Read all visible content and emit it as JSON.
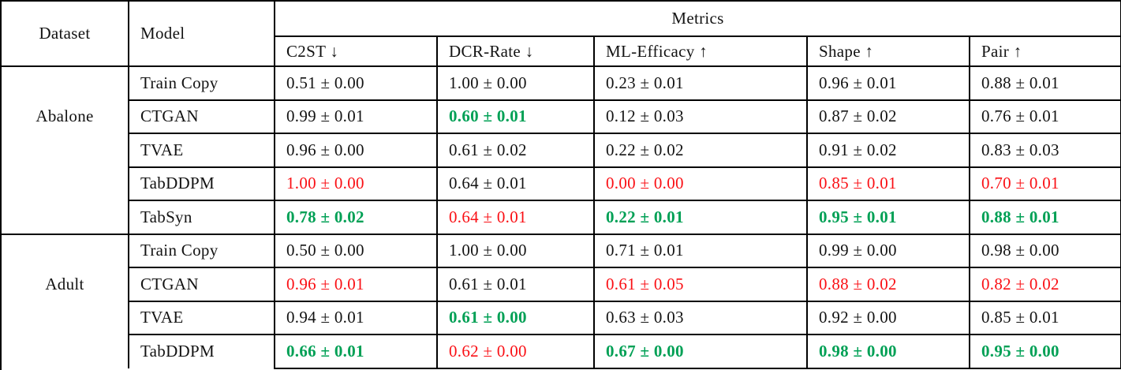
{
  "table": {
    "header": {
      "dataset": "Dataset",
      "model": "Model",
      "metrics_group": "Metrics",
      "columns": [
        "C2ST ↓",
        "DCR-Rate ↓",
        "ML-Efficacy ↑",
        "Shape ↑",
        "Pair ↑"
      ]
    },
    "sections": [
      {
        "dataset": "Abalone",
        "rows": [
          {
            "model": "Train Copy",
            "values": [
              "0.51 ± 0.00",
              "1.00 ± 0.00",
              "0.23 ± 0.01",
              "0.96 ± 0.01",
              "0.88 ± 0.01"
            ],
            "styles": [
              "plain",
              "plain",
              "plain",
              "plain",
              "plain"
            ]
          },
          {
            "model": "CTGAN",
            "values": [
              "0.99 ± 0.01",
              "0.60 ± 0.01",
              "0.12 ± 0.03",
              "0.87 ± 0.02",
              "0.76 ± 0.01"
            ],
            "styles": [
              "plain",
              "green-bold",
              "plain",
              "plain",
              "plain"
            ]
          },
          {
            "model": "TVAE",
            "values": [
              "0.96 ± 0.00",
              "0.61 ± 0.02",
              "0.22 ± 0.02",
              "0.91 ± 0.02",
              "0.83 ± 0.03"
            ],
            "styles": [
              "plain",
              "plain",
              "plain",
              "plain",
              "plain"
            ]
          },
          {
            "model": "TabDDPM",
            "values": [
              "1.00 ± 0.00",
              "0.64 ± 0.01",
              "0.00 ± 0.00",
              "0.85 ± 0.01",
              "0.70 ± 0.01"
            ],
            "styles": [
              "red",
              "plain",
              "red",
              "red",
              "red"
            ]
          },
          {
            "model": "TabSyn",
            "values": [
              "0.78 ± 0.02",
              "0.64 ± 0.01",
              "0.22 ± 0.01",
              "0.95 ± 0.01",
              "0.88 ± 0.01"
            ],
            "styles": [
              "green-bold",
              "red",
              "green-bold",
              "green-bold",
              "green-bold"
            ]
          }
        ]
      },
      {
        "dataset": "Adult",
        "rows": [
          {
            "model": "Train Copy",
            "values": [
              "0.50 ± 0.00",
              "1.00 ± 0.00",
              "0.71 ± 0.01",
              "0.99 ± 0.00",
              "0.98 ± 0.00"
            ],
            "styles": [
              "plain",
              "plain",
              "plain",
              "plain",
              "plain"
            ]
          },
          {
            "model": "CTGAN",
            "values": [
              "0.96 ± 0.01",
              "0.61 ± 0.01",
              "0.61 ± 0.05",
              "0.88 ± 0.02",
              "0.82 ± 0.02"
            ],
            "styles": [
              "red",
              "plain",
              "red",
              "red",
              "red"
            ]
          },
          {
            "model": "TVAE",
            "values": [
              "0.94 ± 0.01",
              "0.61 ± 0.00",
              "0.63 ± 0.03",
              "0.92 ± 0.00",
              "0.85 ± 0.01"
            ],
            "styles": [
              "plain",
              "green-bold",
              "plain",
              "plain",
              "plain"
            ]
          },
          {
            "model": "TabDDPM",
            "values": [
              "0.66 ± 0.01",
              "0.62 ± 0.00",
              "0.67 ± 0.00",
              "0.98 ± 0.00",
              "0.95 ± 0.00"
            ],
            "styles": [
              "green-bold",
              "red",
              "green-bold",
              "green-bold",
              "green-bold"
            ]
          }
        ]
      }
    ]
  },
  "colors": {
    "highlight_green": "#00a055",
    "highlight_red": "#fa0f14",
    "text": "#131313",
    "border": "#000000"
  }
}
